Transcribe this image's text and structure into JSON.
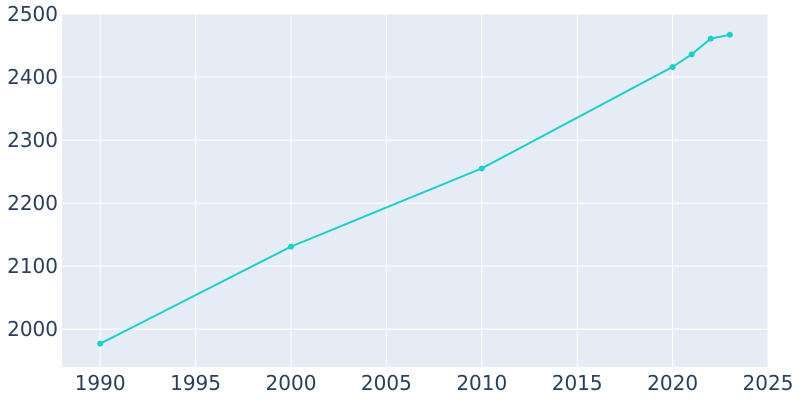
{
  "chart_data": {
    "type": "line",
    "title": "",
    "xlabel": "",
    "ylabel": "",
    "xlim": [
      1988,
      2025
    ],
    "ylim": [
      1940,
      2500
    ],
    "x_ticks": [
      1990,
      1995,
      2000,
      2005,
      2010,
      2015,
      2020,
      2025
    ],
    "y_ticks": [
      2000,
      2100,
      2200,
      2300,
      2400,
      2500
    ],
    "grid": true,
    "legend": "none",
    "colors": {
      "plot_background": "#e5ecf6",
      "grid": "#ffffff",
      "line": "#1ccfc9",
      "tick_text": "#2a3f5f"
    },
    "series": [
      {
        "x": [
          1990,
          2000,
          2010,
          2020,
          2021,
          2022,
          2023
        ],
        "y": [
          1977,
          2131,
          2255,
          2416,
          2436,
          2461,
          2467
        ]
      }
    ]
  }
}
